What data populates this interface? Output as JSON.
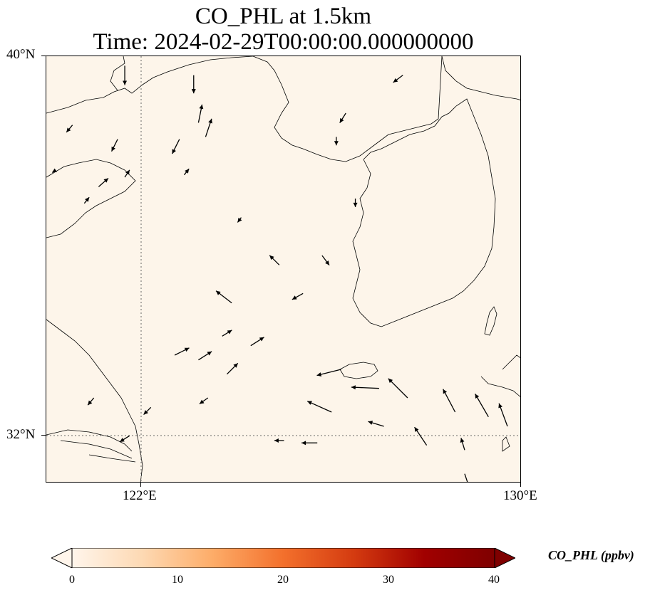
{
  "title_line1": "CO_PHL at 1.5km",
  "title_line2": "Time: 2024-02-29T00:00:00.000000000",
  "map": {
    "extent": {
      "lon_min": 120,
      "lon_max": 130,
      "lat_min": 31,
      "lat_max": 40
    },
    "lat_labels": [
      "40°N",
      "32°N"
    ],
    "lon_labels": [
      "122°E",
      "130°E"
    ],
    "background_color": "#fdf5ea",
    "gridlines": "dotted",
    "wind_vectors": [
      {
        "lon": 121.65,
        "lat": 39.8,
        "u": 0,
        "v": -1.6
      },
      {
        "lon": 123.1,
        "lat": 39.6,
        "u": 0,
        "v": -1.5
      },
      {
        "lon": 123.2,
        "lat": 38.6,
        "u": 0.3,
        "v": 1.5
      },
      {
        "lon": 123.35,
        "lat": 38.3,
        "u": 0.5,
        "v": 1.5
      },
      {
        "lon": 122.8,
        "lat": 38.25,
        "u": -0.6,
        "v": -1.2
      },
      {
        "lon": 121.5,
        "lat": 38.25,
        "u": -0.5,
        "v": -1.0
      },
      {
        "lon": 120.55,
        "lat": 38.55,
        "u": -0.5,
        "v": -0.6
      },
      {
        "lon": 120.2,
        "lat": 37.6,
        "u": -0.3,
        "v": -0.2
      },
      {
        "lon": 121.65,
        "lat": 37.45,
        "u": 0.4,
        "v": 0.6
      },
      {
        "lon": 122.9,
        "lat": 37.5,
        "u": 0.4,
        "v": 0.5
      },
      {
        "lon": 121.1,
        "lat": 37.25,
        "u": 0.8,
        "v": 0.7
      },
      {
        "lon": 120.8,
        "lat": 36.9,
        "u": 0.4,
        "v": 0.5
      },
      {
        "lon": 126.3,
        "lat": 38.8,
        "u": -0.5,
        "v": -0.8
      },
      {
        "lon": 127.5,
        "lat": 39.6,
        "u": -0.8,
        "v": -0.6
      },
      {
        "lon": 126.1,
        "lat": 38.3,
        "u": 0,
        "v": -0.7
      },
      {
        "lon": 124.1,
        "lat": 36.6,
        "u": -0.3,
        "v": -0.4
      },
      {
        "lon": 126.5,
        "lat": 37.0,
        "u": 0,
        "v": -0.7
      },
      {
        "lon": 125.8,
        "lat": 35.8,
        "u": 0.6,
        "v": -0.8
      },
      {
        "lon": 124.9,
        "lat": 35.6,
        "u": -0.8,
        "v": 0.8
      },
      {
        "lon": 125.4,
        "lat": 35.0,
        "u": -0.9,
        "v": -0.5
      },
      {
        "lon": 123.9,
        "lat": 34.8,
        "u": -1.3,
        "v": 1.0
      },
      {
        "lon": 123.7,
        "lat": 34.1,
        "u": 0.8,
        "v": 0.5
      },
      {
        "lon": 124.3,
        "lat": 33.9,
        "u": 1.1,
        "v": 0.7
      },
      {
        "lon": 123.2,
        "lat": 33.6,
        "u": 1.1,
        "v": 0.7
      },
      {
        "lon": 122.7,
        "lat": 33.7,
        "u": 1.2,
        "v": 0.6
      },
      {
        "lon": 123.8,
        "lat": 33.3,
        "u": 0.9,
        "v": 0.9
      },
      {
        "lon": 126.2,
        "lat": 33.4,
        "u": -2.0,
        "v": -0.5
      },
      {
        "lon": 127.0,
        "lat": 33.0,
        "u": -2.3,
        "v": 0.1
      },
      {
        "lon": 127.6,
        "lat": 32.8,
        "u": -1.6,
        "v": 1.6
      },
      {
        "lon": 128.6,
        "lat": 32.5,
        "u": -1.0,
        "v": 1.9
      },
      {
        "lon": 129.3,
        "lat": 32.4,
        "u": -1.1,
        "v": 1.9
      },
      {
        "lon": 129.7,
        "lat": 32.2,
        "u": -0.7,
        "v": 1.9
      },
      {
        "lon": 126.0,
        "lat": 32.5,
        "u": -2.0,
        "v": 0.9
      },
      {
        "lon": 127.1,
        "lat": 32.2,
        "u": -1.3,
        "v": 0.4
      },
      {
        "lon": 128.0,
        "lat": 31.8,
        "u": -1.0,
        "v": 1.5
      },
      {
        "lon": 128.8,
        "lat": 31.7,
        "u": -0.3,
        "v": 1.0
      },
      {
        "lon": 125.7,
        "lat": 31.85,
        "u": -1.3,
        "v": 0
      },
      {
        "lon": 125.0,
        "lat": 31.9,
        "u": -0.8,
        "v": 0
      },
      {
        "lon": 128.8,
        "lat": 31.2,
        "u": 0.4,
        "v": -1.2
      },
      {
        "lon": 123.4,
        "lat": 32.8,
        "u": -0.7,
        "v": -0.5
      },
      {
        "lon": 122.2,
        "lat": 32.6,
        "u": -0.6,
        "v": -0.6
      },
      {
        "lon": 121.0,
        "lat": 32.8,
        "u": -0.5,
        "v": -0.6
      },
      {
        "lon": 121.75,
        "lat": 32.0,
        "u": -0.8,
        "v": -0.5
      }
    ]
  },
  "colorbar": {
    "title": "CO_PHL (ppbv)",
    "tick_labels": [
      "0",
      "10",
      "20",
      "30",
      "40"
    ],
    "range": [
      0,
      40
    ],
    "colors": [
      "#fff5eb",
      "#fdd9b3",
      "#fdac68",
      "#f3702c",
      "#d43b10",
      "#a10000",
      "#7f0000"
    ]
  }
}
